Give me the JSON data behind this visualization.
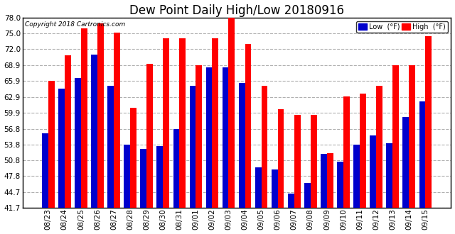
{
  "title": "Dew Point Daily High/Low 20180916",
  "copyright": "Copyright 2018 Cartronics.com",
  "dates": [
    "08/23",
    "08/24",
    "08/25",
    "08/26",
    "08/27",
    "08/28",
    "08/29",
    "08/30",
    "08/31",
    "09/01",
    "09/02",
    "09/03",
    "09/04",
    "09/05",
    "09/06",
    "09/07",
    "09/08",
    "09/09",
    "09/10",
    "09/11",
    "09/12",
    "09/13",
    "09/14",
    "09/15"
  ],
  "highs": [
    65.9,
    70.9,
    76.0,
    76.9,
    75.2,
    60.8,
    69.2,
    74.1,
    74.1,
    68.9,
    74.1,
    78.0,
    73.0,
    65.0,
    60.5,
    59.5,
    59.5,
    52.2,
    63.0,
    63.5,
    65.0,
    69.0,
    69.0,
    74.5
  ],
  "lows": [
    55.9,
    64.5,
    66.5,
    71.0,
    65.0,
    53.8,
    53.0,
    53.5,
    56.8,
    65.0,
    68.5,
    68.5,
    65.5,
    49.5,
    49.0,
    44.5,
    46.5,
    52.0,
    50.5,
    53.8,
    55.5,
    54.0,
    59.0,
    62.0
  ],
  "bar_width": 0.38,
  "high_color": "#ff0000",
  "low_color": "#0000cc",
  "bg_color": "#ffffff",
  "grid_color": "#b0b0b0",
  "ylim_min": 41.7,
  "ylim_max": 78.0,
  "yticks": [
    41.7,
    44.7,
    47.8,
    50.8,
    53.8,
    56.8,
    59.9,
    62.9,
    65.9,
    68.9,
    72.0,
    75.0,
    78.0
  ],
  "title_fontsize": 12,
  "tick_fontsize": 7.5,
  "legend_low_label": "Low  (°F)",
  "legend_high_label": "High  (°F)"
}
